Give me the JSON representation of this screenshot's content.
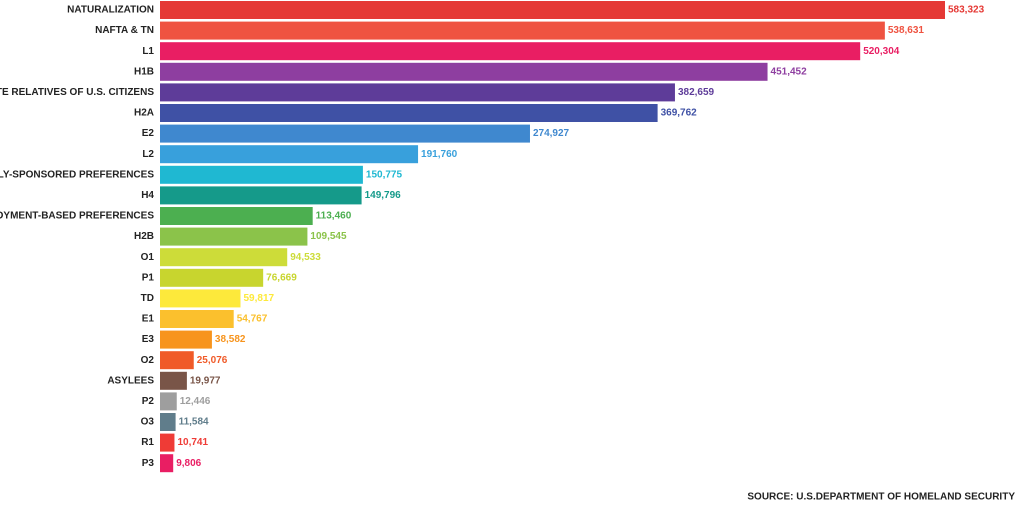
{
  "chart_data": {
    "type": "barh",
    "categories": [
      "NATURALIZATION",
      "NAFTA & TN",
      "L1",
      "H1B",
      "IMMEDIATE RELATIVES OF U.S. CITIZENS",
      "H2A",
      "E2",
      "L2",
      "FAMILY-SPONSORED PREFERENCES",
      "H4",
      "EMPLOYMENT-BASED PREFERENCES",
      "H2B",
      "O1",
      "P1",
      "TD",
      "E1",
      "E3",
      "O2",
      "ASYLEES",
      "P2",
      "O3",
      "R1",
      "P3"
    ],
    "values": [
      583323,
      538631,
      520304,
      451452,
      382659,
      369762,
      274927,
      191760,
      150775,
      149796,
      113460,
      109545,
      94533,
      76669,
      59817,
      54767,
      38582,
      25076,
      19977,
      12446,
      11584,
      10741,
      9806
    ],
    "value_labels": [
      "583,323",
      "538,631",
      "520,304",
      "451,452",
      "382,659",
      "369,762",
      "274,927",
      "191,760",
      "150,775",
      "149,796",
      "113,460",
      "109,545",
      "94,533",
      "76,669",
      "59,817",
      "54,767",
      "38,582",
      "25,076",
      "19,977",
      "12,446",
      "11,584",
      "10,741",
      "9,806"
    ],
    "colors": [
      "#e53935",
      "#ef5341",
      "#e91e63",
      "#8e3ea0",
      "#5e3c99",
      "#3f51a5",
      "#3f88cf",
      "#38a0dc",
      "#1fb8d2",
      "#159a8a",
      "#4caf50",
      "#8bc34a",
      "#cddc39",
      "#c8d52e",
      "#fde93b",
      "#fbc02d",
      "#f7941d",
      "#f05a28",
      "#795548",
      "#9e9e9e",
      "#607d8b",
      "#ef3b36",
      "#e91e63"
    ],
    "source": "SOURCE: U.S.DEPARTMENT OF HOMELAND SECURITY"
  }
}
